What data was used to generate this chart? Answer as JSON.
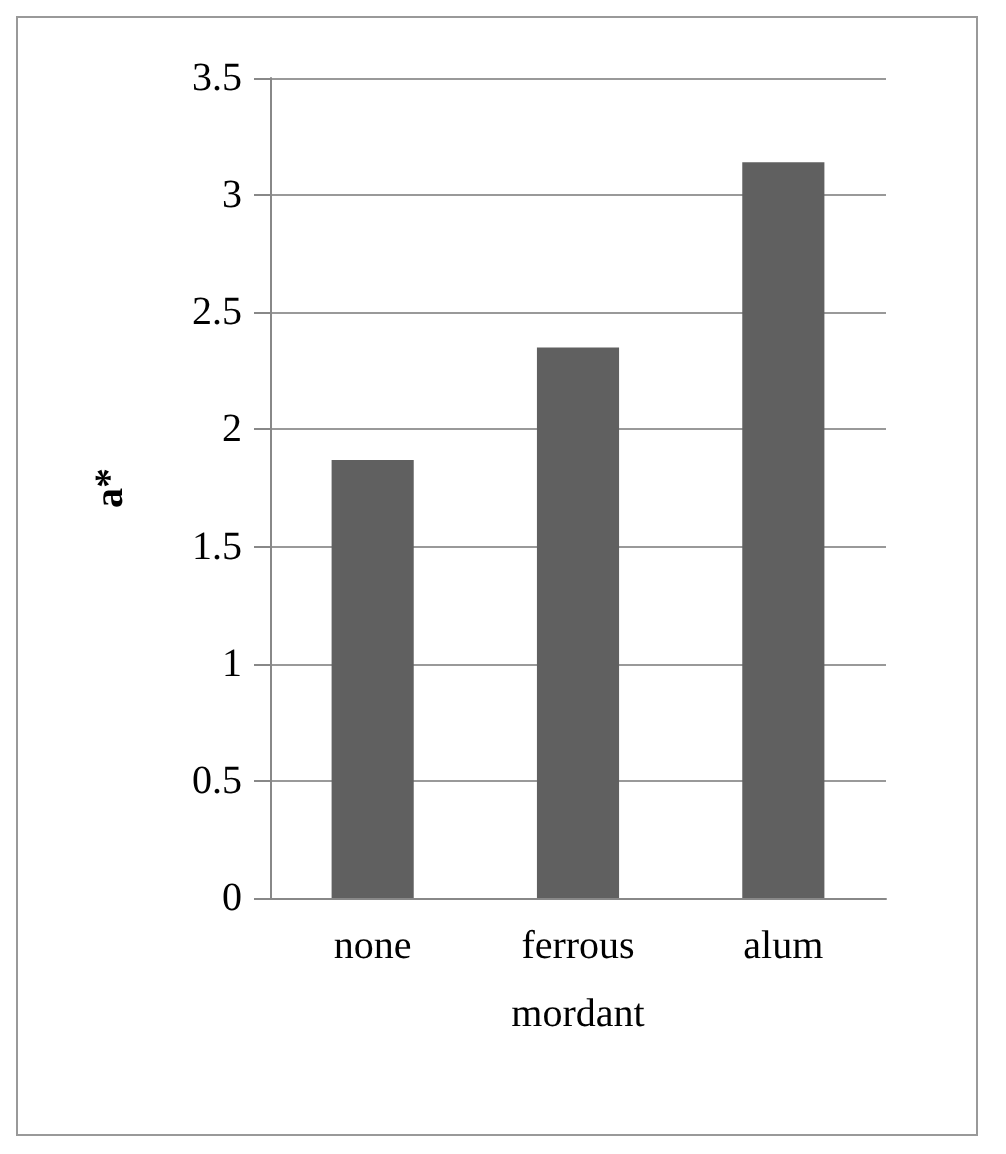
{
  "chart_data": {
    "type": "bar",
    "ylabel": "a*",
    "xlabel": "mordant",
    "categories": [
      "none",
      "ferrous",
      "alum"
    ],
    "values": [
      1.87,
      2.35,
      3.14
    ],
    "color": "#606060",
    "ylim": [
      0,
      3.5
    ],
    "yticks": [
      0,
      0.5,
      1,
      1.5,
      2,
      2.5,
      3,
      3.5
    ],
    "grid": "y"
  }
}
